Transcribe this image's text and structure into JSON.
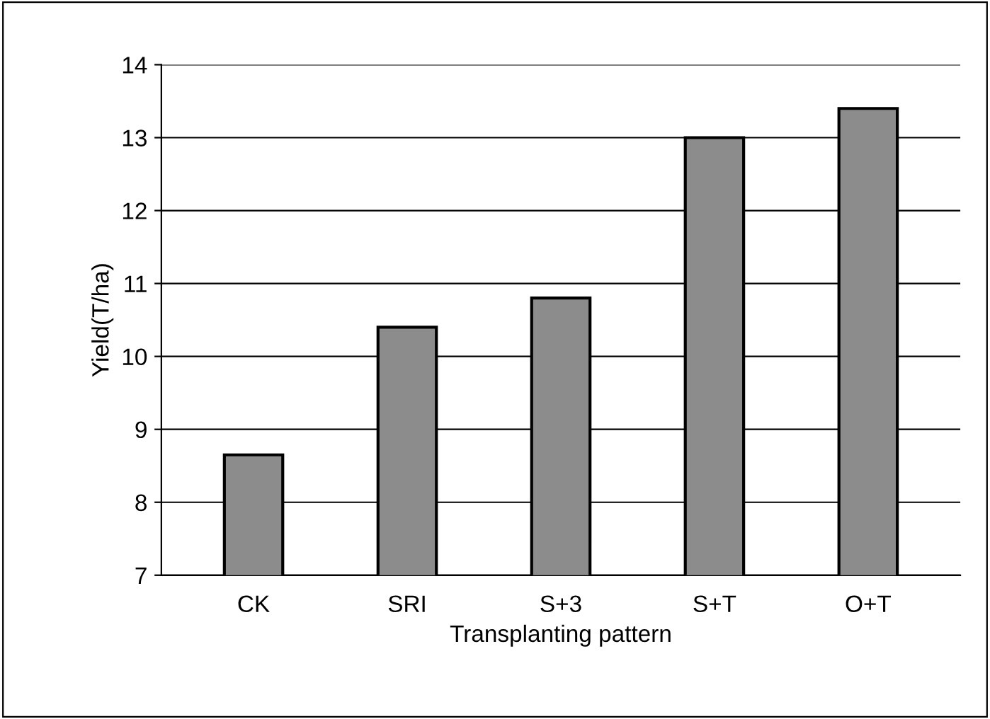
{
  "chart_data": {
    "type": "bar",
    "xlabel": "Transplanting pattern",
    "ylabel": "Yield(T/ha)",
    "categories": [
      "CK",
      "SRI",
      "S+3",
      "S+T",
      "O+T"
    ],
    "values": [
      8.65,
      10.4,
      10.8,
      13.0,
      13.4
    ],
    "color": "#8c8c8c",
    "ylim": [
      7,
      14
    ],
    "yticks": [
      7,
      8,
      9,
      10,
      11,
      12,
      13,
      14
    ],
    "grid": "y"
  }
}
